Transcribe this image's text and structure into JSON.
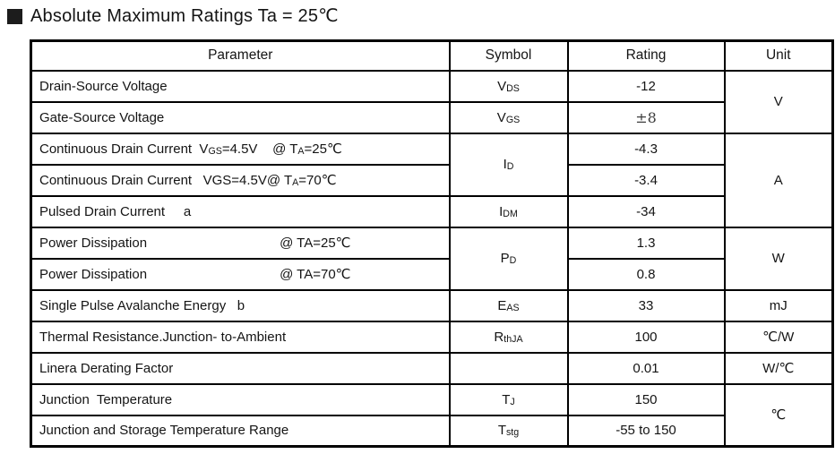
{
  "title": {
    "text": "Absolute Maximum Ratings Ta = 25℃"
  },
  "colors": {
    "border": "#000000",
    "text": "#141414",
    "background": "#ffffff"
  },
  "table": {
    "headers": [
      "Parameter",
      "Symbol",
      "Rating",
      "Unit"
    ],
    "rows": [
      {
        "cells": [
          {
            "c": "param",
            "html": "Drain-Source Voltage"
          },
          {
            "c": "symbol",
            "html": "V<sub>DS</sub>"
          },
          {
            "c": "rating",
            "html": "-12"
          },
          {
            "c": "unit",
            "html": "V",
            "rowspan": 2
          }
        ]
      },
      {
        "cells": [
          {
            "c": "param",
            "html": "Gate-Source Voltage"
          },
          {
            "c": "symbol",
            "html": "V<sub>GS</sub>"
          },
          {
            "c": "rating",
            "html": "±8",
            "cls": "pm"
          }
        ]
      },
      {
        "cells": [
          {
            "c": "param",
            "html": "Continuous Drain Current  V<sub>GS</sub>=4.5V    @ T<sub>A</sub>=25℃"
          },
          {
            "c": "symbol",
            "html": "I<sub>D</sub>",
            "rowspan": 2
          },
          {
            "c": "rating",
            "html": "-4.3"
          },
          {
            "c": "unit",
            "html": "A",
            "rowspan": 3
          }
        ]
      },
      {
        "cells": [
          {
            "c": "param",
            "html": "Continuous Drain Current   VGS=4.5V@ T<sub>A</sub>=70℃"
          },
          {
            "c": "rating",
            "html": "-3.4"
          }
        ]
      },
      {
        "cells": [
          {
            "c": "param",
            "html": "Pulsed Drain Current     a"
          },
          {
            "c": "symbol",
            "html": "I<sub>DM</sub>"
          },
          {
            "c": "rating",
            "html": "-34"
          }
        ]
      },
      {
        "cells": [
          {
            "c": "param",
            "html": "Power Dissipation<i class='sp' style='width:148px'></i>@ TA=25℃"
          },
          {
            "c": "symbol",
            "html": "P<sub>D</sub>",
            "rowspan": 2
          },
          {
            "c": "rating",
            "html": "1.3"
          },
          {
            "c": "unit",
            "html": "W",
            "rowspan": 2
          }
        ]
      },
      {
        "cells": [
          {
            "c": "param",
            "html": "Power Dissipation<i class='sp' style='width:148px'></i>@ TA=70℃"
          },
          {
            "c": "rating",
            "html": "0.8"
          }
        ]
      },
      {
        "cells": [
          {
            "c": "param",
            "html": "Single Pulse Avalanche Energy   b"
          },
          {
            "c": "symbol",
            "html": "E<sub>AS</sub>"
          },
          {
            "c": "rating",
            "html": "33"
          },
          {
            "c": "unit",
            "html": "mJ"
          }
        ]
      },
      {
        "cells": [
          {
            "c": "param",
            "html": "Thermal Resistance.Junction- to-Ambient"
          },
          {
            "c": "symbol",
            "html": "R<sub>thJA</sub>"
          },
          {
            "c": "rating",
            "html": "100"
          },
          {
            "c": "unit",
            "html": "℃/W"
          }
        ]
      },
      {
        "cells": [
          {
            "c": "param",
            "html": "Linera Derating Factor"
          },
          {
            "c": "symbol",
            "html": ""
          },
          {
            "c": "rating",
            "html": "0.01"
          },
          {
            "c": "unit",
            "html": "W/℃"
          }
        ]
      },
      {
        "cells": [
          {
            "c": "param",
            "html": "Junction  Temperature"
          },
          {
            "c": "symbol",
            "html": "T<sub>J</sub>"
          },
          {
            "c": "rating",
            "html": "150"
          },
          {
            "c": "unit",
            "html": "℃",
            "rowspan": 2
          }
        ]
      },
      {
        "cells": [
          {
            "c": "param",
            "html": "Junction and Storage Temperature Range"
          },
          {
            "c": "symbol",
            "html": "T<sub>stg</sub>"
          },
          {
            "c": "rating",
            "html": "-55 to 150"
          }
        ]
      }
    ]
  }
}
